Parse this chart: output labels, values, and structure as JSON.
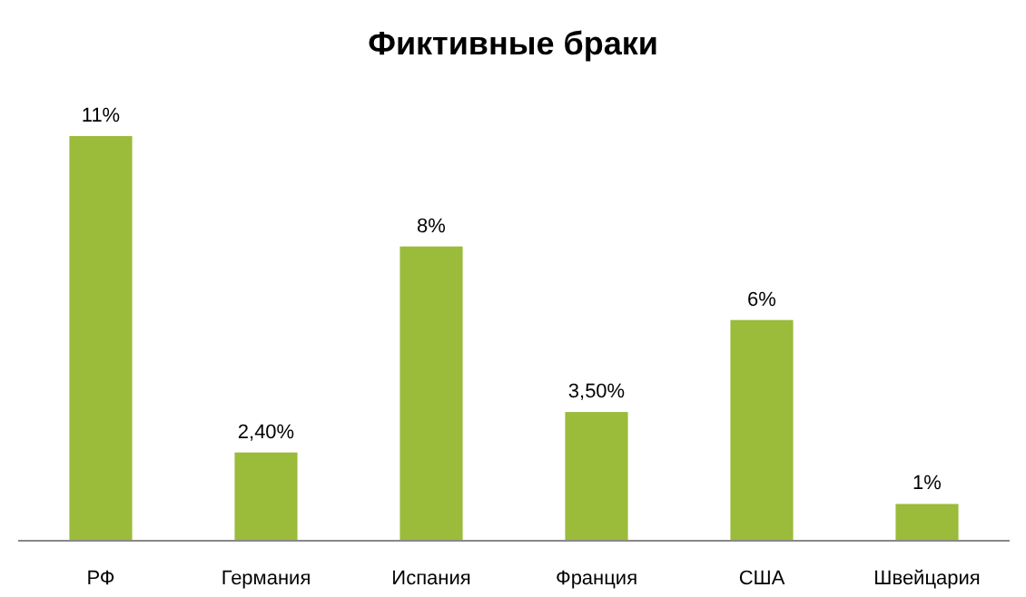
{
  "chart_data": {
    "type": "bar",
    "title": "Фиктивные браки",
    "categories": [
      "РФ",
      "Германия",
      "Испания",
      "Франция",
      "США",
      "Швейцария"
    ],
    "values": [
      11,
      2.4,
      8,
      3.5,
      6,
      1
    ],
    "value_labels": [
      "11%",
      "2,40%",
      "8%",
      "3,50%",
      "6%",
      "1%"
    ],
    "color": "#9bbb3b"
  }
}
